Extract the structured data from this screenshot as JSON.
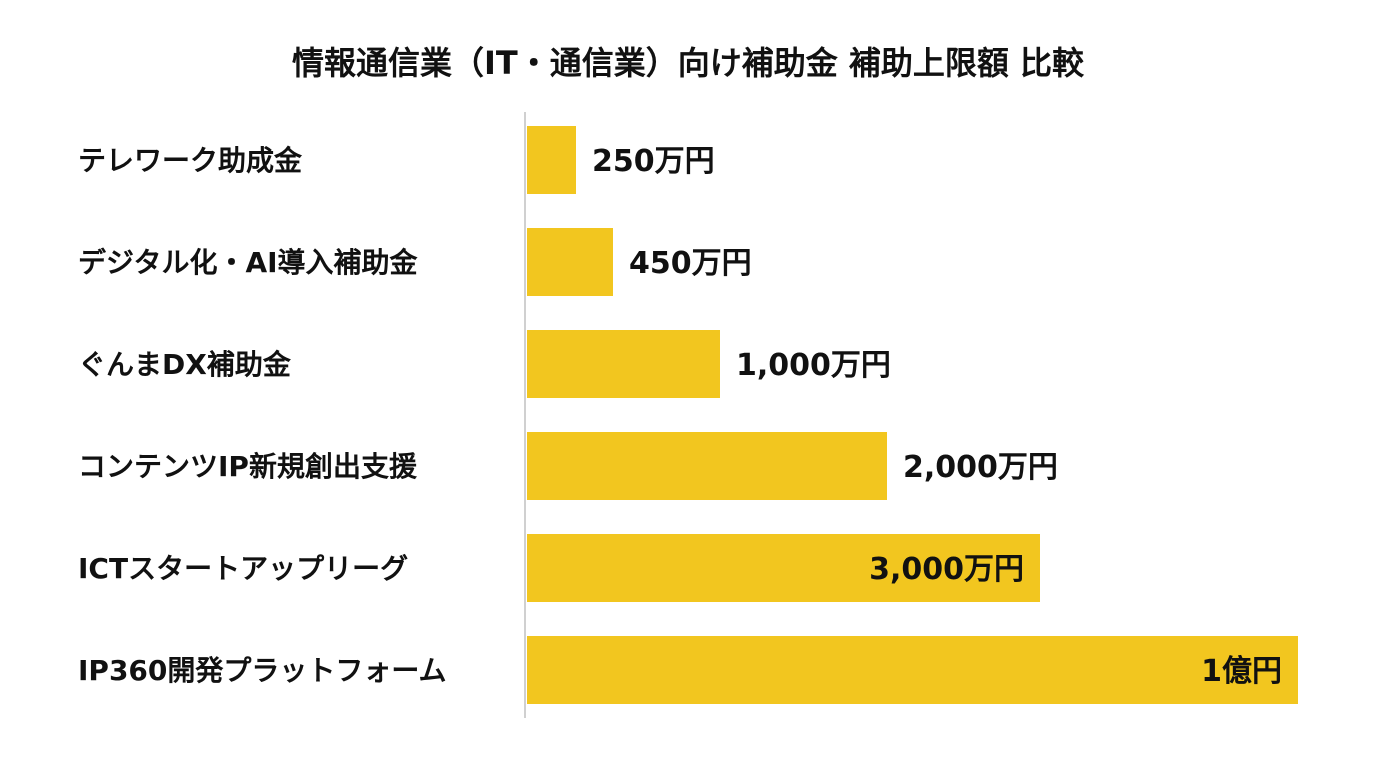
{
  "chart_data": {
    "type": "bar",
    "orientation": "horizontal",
    "title": "情報通信業（IT・通信業）向け補助金 補助上限額 比較",
    "xlabel": "",
    "ylabel": "",
    "unit": "万円",
    "grid": false,
    "legend": "none",
    "bar_color": "#F2C61F",
    "axis_color": "#D0D0D0",
    "categories": [
      "テレワーク助成金",
      "デジタル化・AI導入補助金",
      "ぐんまDX補助金",
      "コンテンツIP新規創出支援",
      "ICTスタートアップリーグ",
      "IP360開発プラットフォーム"
    ],
    "values": [
      250,
      450,
      1000,
      2000,
      3000,
      10000
    ],
    "data_labels": [
      "250万円",
      "450万円",
      "1,000万円",
      "2,000万円",
      "3,000万円",
      "1億円"
    ],
    "label_inside": [
      false,
      false,
      false,
      false,
      true,
      true
    ]
  }
}
